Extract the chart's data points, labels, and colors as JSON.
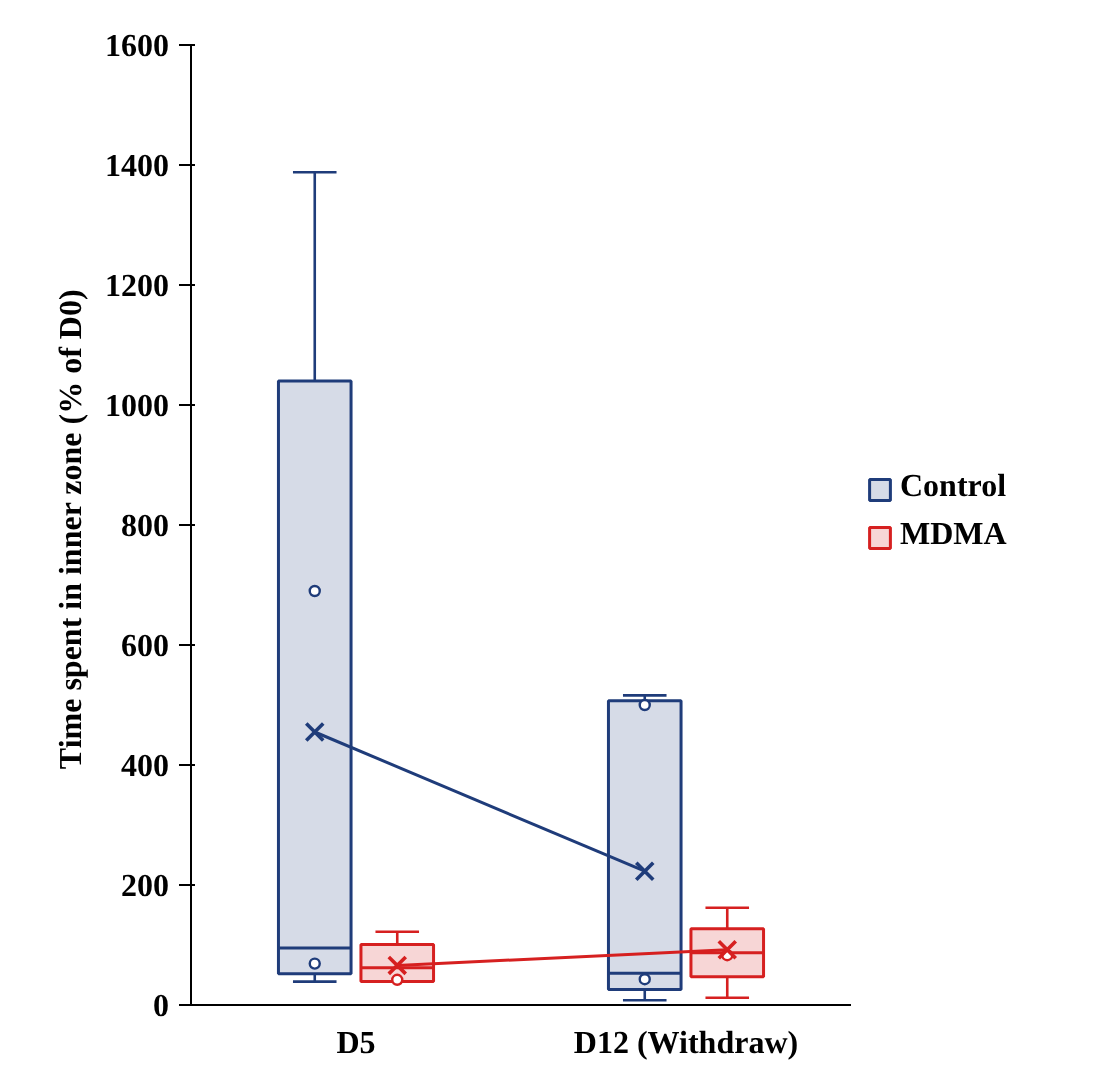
{
  "chart_data": {
    "type": "box",
    "ylabel": "Time spent in inner zone  (% of D0)",
    "categories": [
      "D5",
      "D12 (Withdraw)"
    ],
    "ylim": [
      0,
      1600
    ],
    "yticks": [
      0,
      200,
      400,
      600,
      800,
      1000,
      1200,
      1400,
      1600
    ],
    "grid": false,
    "legend": "right",
    "marker": "cross",
    "line_style": "solid",
    "series": [
      {
        "name": "Control",
        "color": "#1f3c7a",
        "boxes": [
          {
            "low": 39,
            "q1": 52,
            "median": 95,
            "q3": 1040,
            "high": 1388,
            "outliers": [
              690,
              69
            ]
          },
          {
            "low": 8,
            "q1": 26,
            "median": 53,
            "q3": 507,
            "high": 516,
            "outliers": [
              500,
              43
            ]
          }
        ]
      },
      {
        "name": "MDMA",
        "color": "#d62020",
        "boxes": [
          {
            "low": 39,
            "q1": 39,
            "median": 62,
            "q3": 101,
            "high": 122,
            "outliers": [
              42
            ]
          },
          {
            "low": 12,
            "q1": 47,
            "median": 87,
            "q3": 127,
            "high": 162,
            "outliers": [
              83
            ]
          }
        ]
      },
      {
        "type": "line",
        "color": "#1f3c7a",
        "values": [
          455,
          223
        ]
      },
      {
        "type": "line",
        "color": "#d62020",
        "values": [
          66,
          92
        ]
      }
    ]
  }
}
